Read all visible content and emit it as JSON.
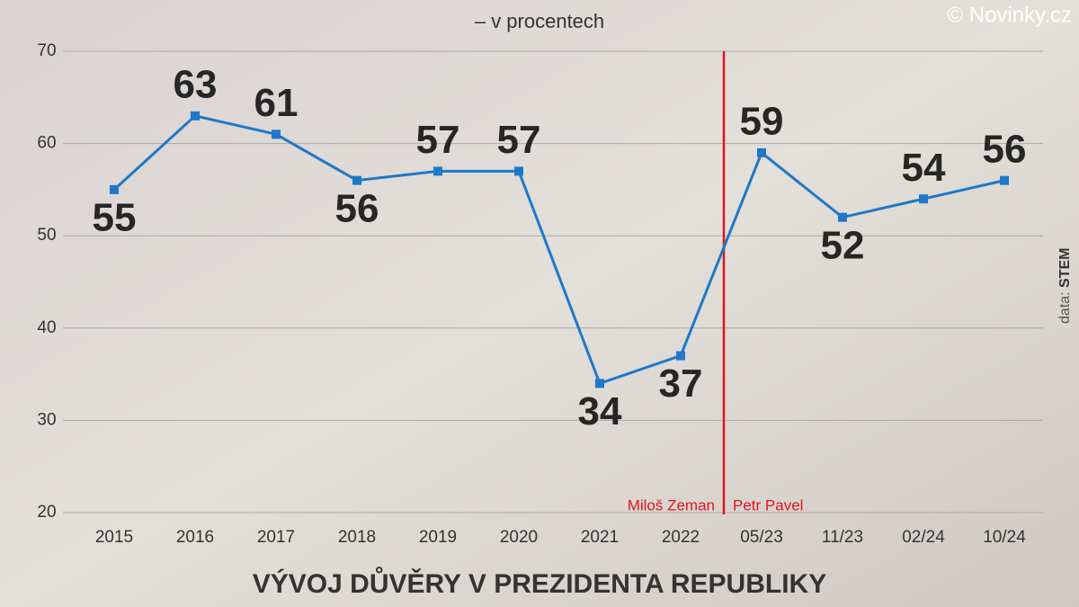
{
  "chart_data": {
    "type": "line",
    "title": "VÝVOJ DŮVĚRY V PREZIDENTA REPUBLIKY",
    "subtitle": "– v procentech",
    "copyright": "© Novinky.cz",
    "source": {
      "label": "data:",
      "name": "STEM"
    },
    "annotations": [
      "Miloš Zeman",
      "Petr Pavel"
    ],
    "categories": [
      "2015",
      "2016",
      "2017",
      "2018",
      "2019",
      "2020",
      "2021",
      "2022",
      "05/23",
      "11/23",
      "02/24",
      "10/24"
    ],
    "series": [
      {
        "name": "Důvěra",
        "color": "#1f78c8",
        "values": [
          55,
          63,
          61,
          56,
          57,
          57,
          34,
          37,
          59,
          52,
          54,
          56
        ]
      }
    ],
    "ylim": [
      20,
      70
    ],
    "yticks": [
      20,
      30,
      40,
      50,
      60,
      70
    ],
    "grid": true
  }
}
